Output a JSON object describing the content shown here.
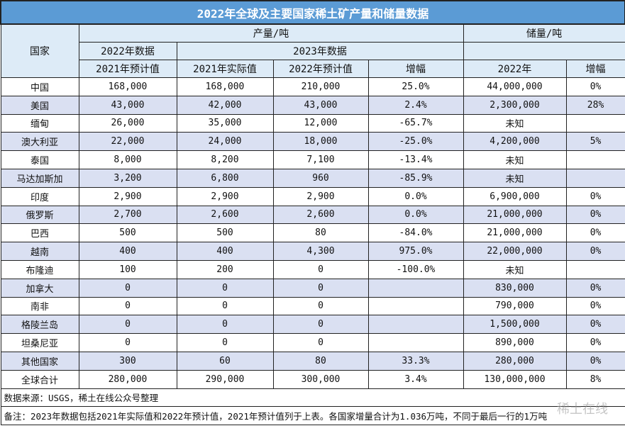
{
  "title": "2022年全球及主要国家稀土矿产量和储量数据",
  "headers": {
    "country": "国家",
    "production": "产量/吨",
    "reserves": "储量/吨",
    "data2022": "2022年数据",
    "data2023": "2023年数据",
    "col_2021_est": "2021年预计值",
    "col_2021_actual": "2021年实际值",
    "col_2022_est": "2022年预计值",
    "col_growth": "增幅",
    "col_reserve_2022": "2022年",
    "col_reserve_growth": "增幅"
  },
  "rows": [
    [
      "中国",
      "168,000",
      "168,000",
      "210,000",
      "25.0%",
      "44,000,000",
      "0%"
    ],
    [
      "美国",
      "43,000",
      "42,000",
      "43,000",
      "2.4%",
      "2,300,000",
      "28%"
    ],
    [
      "缅甸",
      "26,000",
      "35,000",
      "12,000",
      "-65.7%",
      "未知",
      ""
    ],
    [
      "澳大利亚",
      "22,000",
      "24,000",
      "18,000",
      "-25.0%",
      "4,200,000",
      "5%"
    ],
    [
      "泰国",
      "8,000",
      "8,200",
      "7,100",
      "-13.4%",
      "未知",
      ""
    ],
    [
      "马达加斯加",
      "3,200",
      "6,800",
      "960",
      "-85.9%",
      "未知",
      ""
    ],
    [
      "印度",
      "2,900",
      "2,900",
      "2,900",
      "0.0%",
      "6,900,000",
      "0%"
    ],
    [
      "俄罗斯",
      "2,700",
      "2,600",
      "2,600",
      "0.0%",
      "21,000,000",
      "0%"
    ],
    [
      "巴西",
      "500",
      "500",
      "80",
      "-84.0%",
      "21,000,000",
      "0%"
    ],
    [
      "越南",
      "400",
      "400",
      "4,300",
      "975.0%",
      "22,000,000",
      "0%"
    ],
    [
      "布隆迪",
      "100",
      "200",
      "0",
      "-100.0%",
      "未知",
      ""
    ],
    [
      "加拿大",
      "0",
      "0",
      "0",
      "",
      "830,000",
      "0%"
    ],
    [
      "南非",
      "0",
      "0",
      "0",
      "",
      "790,000",
      "0%"
    ],
    [
      "格陵兰岛",
      "0",
      "0",
      "0",
      "",
      "1,500,000",
      "0%"
    ],
    [
      "坦桑尼亚",
      "0",
      "0",
      "0",
      "",
      "890,000",
      "0%"
    ],
    [
      "其他国家",
      "300",
      "60",
      "80",
      "33.3%",
      "280,000",
      "0%"
    ],
    [
      "全球合计",
      "280,000",
      "290,000",
      "300,000",
      "3.4%",
      "130,000,000",
      "8%"
    ]
  ],
  "source": "数据来源：USGS，稀土在线公众号整理",
  "note": "备注：2023年数据包括2021年实际值和2022年预计值，2021年预计值列于上表。各国家增量合计为1.036万吨，不同于最后一行的1万吨",
  "watermark": "稀土在线",
  "colors": {
    "title_bg": "#5b9bd5",
    "header_bg": "#ddebf7",
    "alt_row_bg": "#dae0f2"
  }
}
